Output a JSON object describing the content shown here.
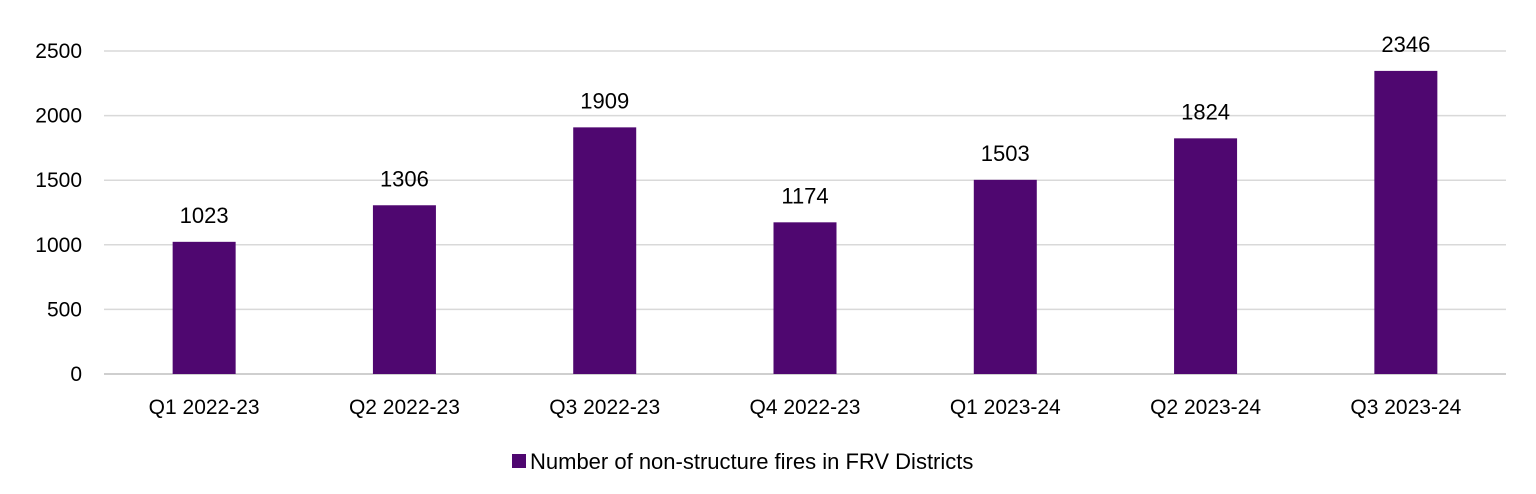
{
  "chart_data": {
    "type": "bar",
    "categories": [
      "Q1 2022-23",
      "Q2 2022-23",
      "Q3 2022-23",
      "Q4 2022-23",
      "Q1 2023-24",
      "Q2 2023-24",
      "Q3 2023-24"
    ],
    "series": [
      {
        "name": "Number of non-structure fires in FRV Districts",
        "values": [
          1023,
          1306,
          1909,
          1174,
          1503,
          1824,
          2346
        ],
        "color": "#4f0770"
      }
    ],
    "y_ticks": [
      "0",
      "500",
      "1000",
      "1500",
      "2000",
      "2500"
    ],
    "ylim": [
      0,
      2500
    ],
    "grid": true,
    "legend_position": "bottom",
    "data_labels": true
  }
}
